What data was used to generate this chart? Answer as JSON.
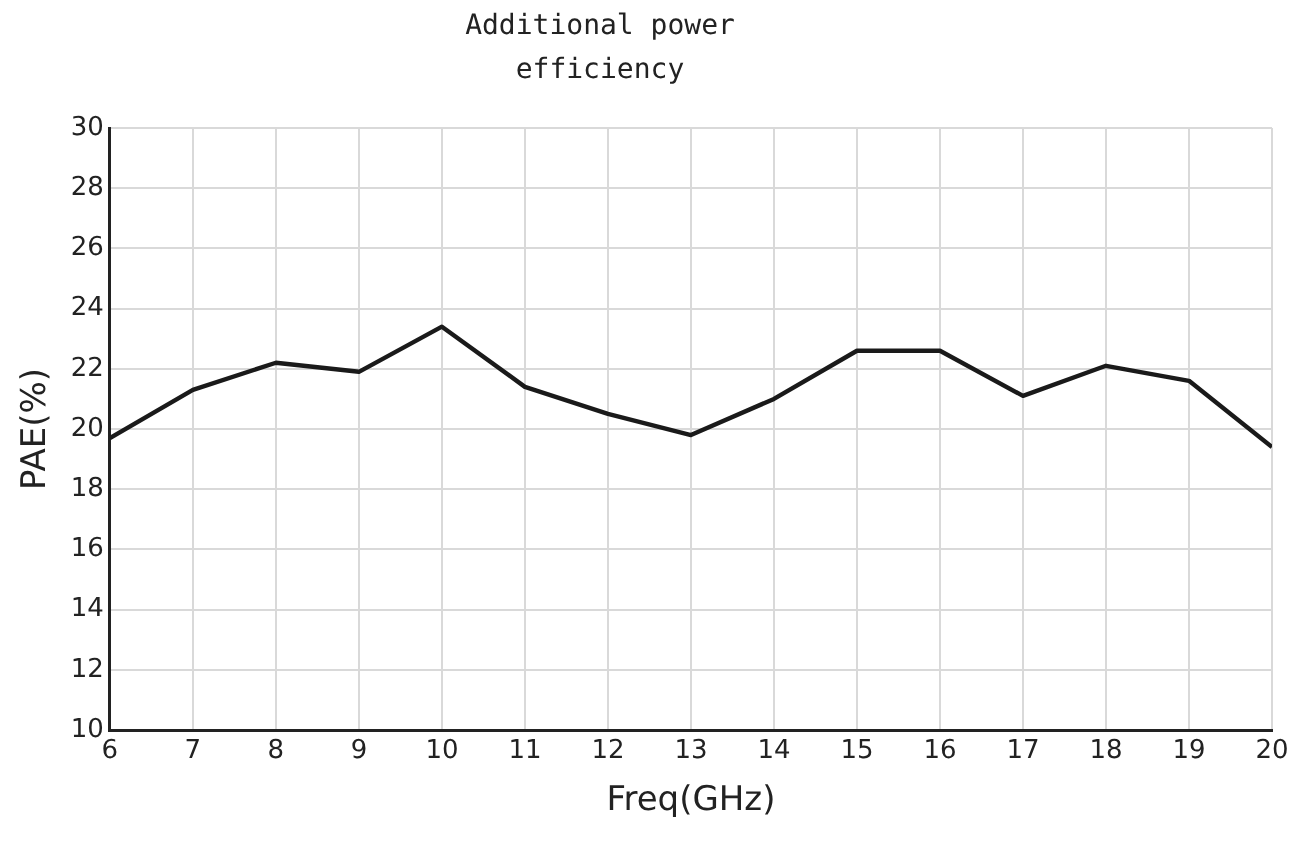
{
  "chart_data": {
    "type": "line",
    "title": "Additional power efficiency",
    "xlabel": "Freq(GHz)",
    "ylabel": "PAE(%)",
    "x": [
      6,
      7,
      8,
      9,
      10,
      11,
      12,
      13,
      14,
      15,
      16,
      17,
      18,
      19,
      20
    ],
    "series": [
      {
        "color": "#1a1a1a",
        "values": [
          19.7,
          21.3,
          22.2,
          21.9,
          23.4,
          21.4,
          20.5,
          19.8,
          21.0,
          22.6,
          22.6,
          21.1,
          22.1,
          21.6,
          19.4
        ]
      }
    ],
    "xlim": [
      6,
      20
    ],
    "xticks": [
      6,
      7,
      8,
      9,
      10,
      11,
      12,
      13,
      14,
      15,
      16,
      17,
      18,
      19,
      20
    ],
    "ylim": [
      10,
      30
    ],
    "yticks": [
      10,
      12,
      14,
      16,
      18,
      20,
      22,
      24,
      26,
      28,
      30
    ],
    "grid": true,
    "legend": false,
    "marker": "none",
    "line_style": "solid"
  }
}
